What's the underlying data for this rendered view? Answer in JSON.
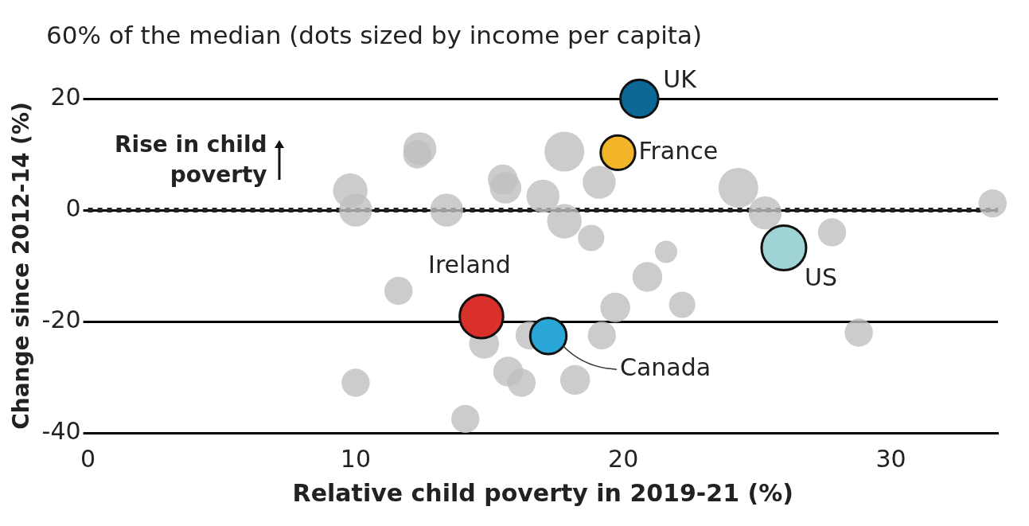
{
  "chart_data": {
    "type": "bubble",
    "title": "60% of the median (dots sized by income per capita)",
    "xlabel": "Relative child poverty in 2019-21 (%)",
    "ylabel": "Change since 2012-14 (%)",
    "xlim": [
      0,
      34
    ],
    "xticks": [
      0,
      10,
      20,
      30
    ],
    "ylim": [
      -40,
      20
    ],
    "yticks": [
      -40,
      -20,
      0,
      20
    ],
    "grid": "y",
    "legend": false,
    "ref_lines": [
      {
        "axis": "y",
        "value": 0,
        "color": "#222222",
        "line_style": "dotted"
      }
    ],
    "annotations": [
      "Rise in child poverty"
    ],
    "series": [
      {
        "color": "#bfbfbf",
        "x": [
          12.4,
          12.3,
          9.8,
          10.0,
          11.6,
          10.0,
          13.4,
          15.5,
          15.6,
          17.0,
          17.8,
          17.8,
          19.1,
          18.8,
          21.6,
          20.9,
          19.7,
          19.2,
          22.2,
          24.3,
          25.3,
          27.8,
          28.8,
          33.8,
          14.8,
          15.7,
          16.2,
          18.2,
          14.1,
          16.5
        ],
        "values": [
          11,
          10,
          3.5,
          0,
          -14.5,
          -31,
          0,
          5.5,
          4,
          2.5,
          -2,
          10.5,
          5,
          -5,
          -7.5,
          -12,
          -17.5,
          -22.5,
          -17,
          4,
          -0.5,
          -4,
          -22,
          1.2,
          -24,
          -29,
          -31,
          -30.5,
          -37.5,
          -22.5
        ],
        "sizes": [
          0.55,
          0.4,
          0.6,
          0.55,
          0.4,
          0.4,
          0.55,
          0.45,
          0.5,
          0.55,
          0.6,
          0.8,
          0.55,
          0.35,
          0.25,
          0.45,
          0.45,
          0.4,
          0.35,
          0.8,
          0.55,
          0.4,
          0.4,
          0.4,
          0.45,
          0.45,
          0.4,
          0.45,
          0.4,
          0.4
        ]
      },
      {
        "name": "UK",
        "color": "#0d6897",
        "x": [
          20.6
        ],
        "values": [
          20
        ],
        "sizes": [
          0.72
        ]
      },
      {
        "name": "France",
        "color": "#f2b52a",
        "x": [
          19.8
        ],
        "values": [
          10.3
        ],
        "sizes": [
          0.6
        ]
      },
      {
        "name": "US",
        "color": "#9fd3d6",
        "x": [
          26.0
        ],
        "values": [
          -6.8
        ],
        "sizes": [
          1
        ]
      },
      {
        "name": "Ireland",
        "color": "#d9302a",
        "x": [
          14.7
        ],
        "values": [
          -19.1
        ],
        "sizes": [
          0.95
        ]
      },
      {
        "name": "Canada",
        "color": "#2aa7d6",
        "x": [
          17.2
        ],
        "values": [
          -22.6
        ],
        "sizes": [
          0.66
        ]
      }
    ]
  }
}
